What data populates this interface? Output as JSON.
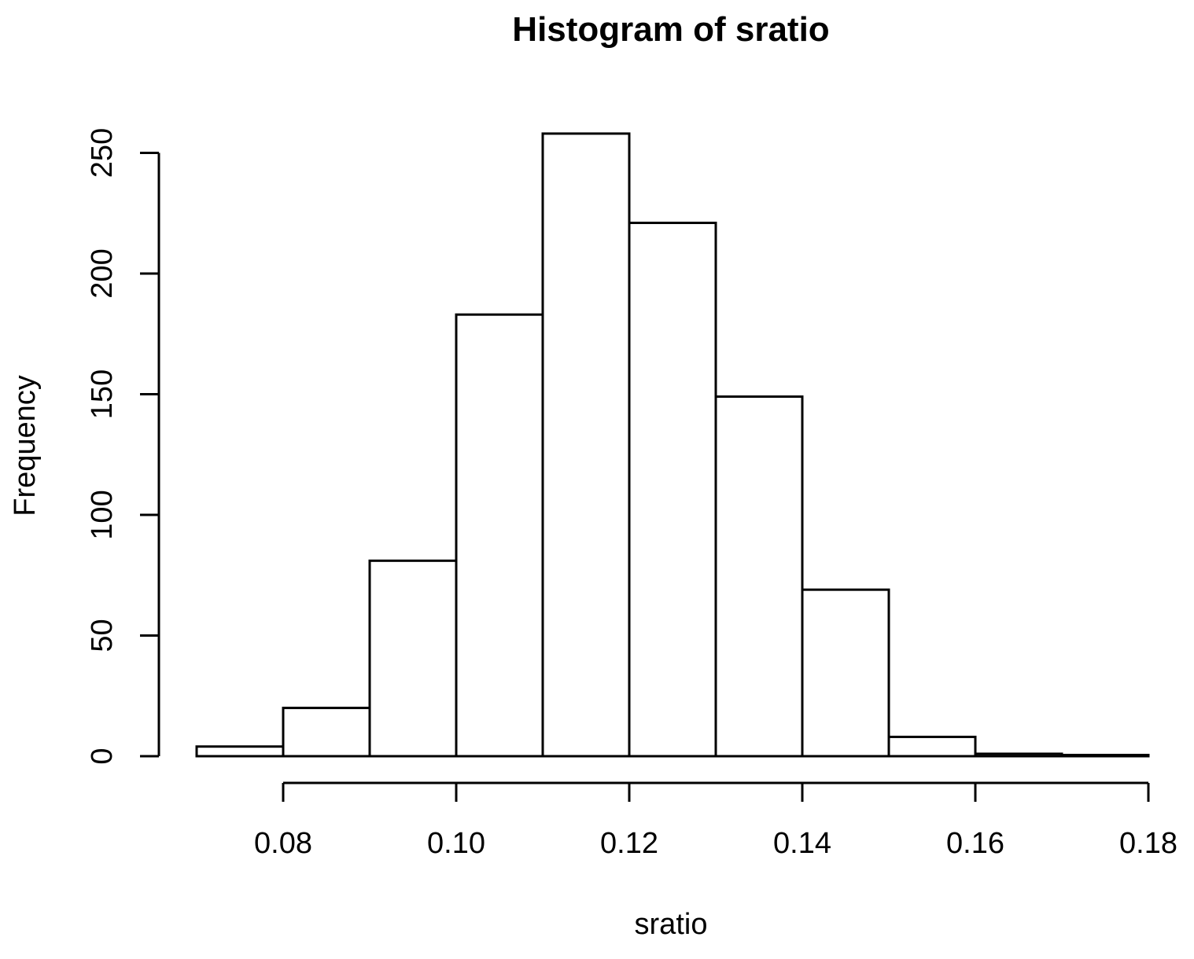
{
  "chart_data": {
    "type": "bar",
    "title": "Histogram of sratio",
    "xlabel": "sratio",
    "ylabel": "Frequency",
    "bins": [
      {
        "start": 0.07,
        "end": 0.08,
        "count": 4
      },
      {
        "start": 0.08,
        "end": 0.09,
        "count": 20
      },
      {
        "start": 0.09,
        "end": 0.1,
        "count": 81
      },
      {
        "start": 0.1,
        "end": 0.11,
        "count": 183
      },
      {
        "start": 0.11,
        "end": 0.12,
        "count": 258
      },
      {
        "start": 0.12,
        "end": 0.13,
        "count": 221
      },
      {
        "start": 0.13,
        "end": 0.14,
        "count": 149
      },
      {
        "start": 0.14,
        "end": 0.15,
        "count": 69
      },
      {
        "start": 0.15,
        "end": 0.16,
        "count": 8
      },
      {
        "start": 0.16,
        "end": 0.17,
        "count": 1
      },
      {
        "start": 0.17,
        "end": 0.18,
        "count": 0.5
      }
    ],
    "x_ticks": [
      "0.08",
      "0.10",
      "0.12",
      "0.14",
      "0.16",
      "0.18"
    ],
    "y_ticks": [
      "0",
      "50",
      "100",
      "150",
      "200",
      "250"
    ],
    "xlim": [
      0.07,
      0.18
    ],
    "ylim": [
      0,
      250
    ],
    "grid": false,
    "fill_color": "#ffffff",
    "stroke_color": "#000000"
  }
}
